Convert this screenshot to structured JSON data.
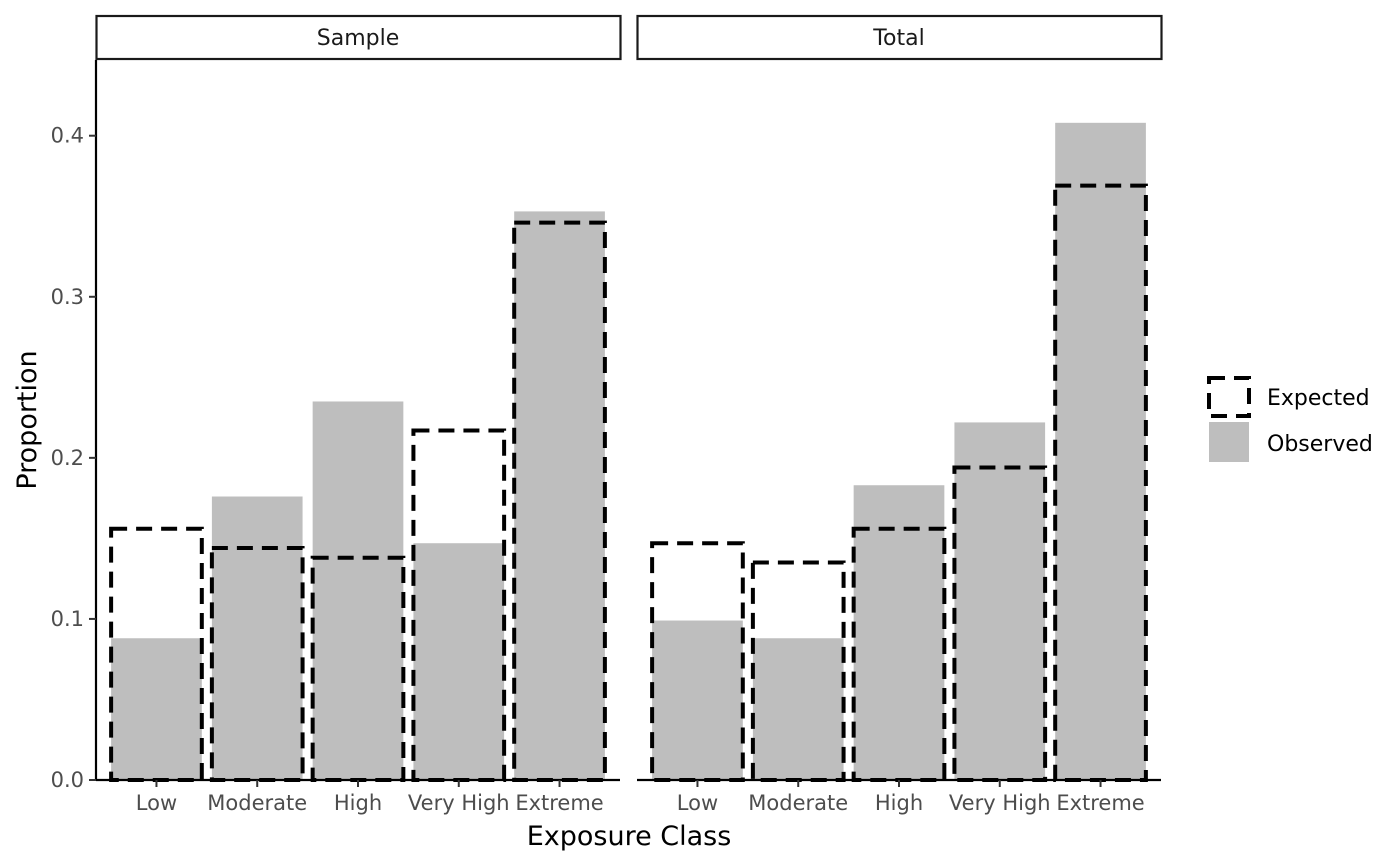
{
  "chart_data": {
    "type": "bar",
    "xlabel": "Exposure Class",
    "ylabel": "Proportion",
    "ylim": [
      0,
      0.447
    ],
    "yticks": [
      "0.0",
      "0.1",
      "0.2",
      "0.3",
      "0.4"
    ],
    "categories": [
      "Low",
      "Moderate",
      "High",
      "Very High",
      "Extreme"
    ],
    "legend": {
      "position": "right",
      "entries": [
        {
          "name": "Expected",
          "style": "dashed-outline"
        },
        {
          "name": "Observed",
          "style": "filled"
        }
      ]
    },
    "colors": {
      "observed": "#bebebe",
      "expected": "#000000"
    },
    "panels": [
      {
        "name": "Sample",
        "observed": [
          0.088,
          0.176,
          0.235,
          0.147,
          0.353
        ],
        "expected": [
          0.156,
          0.144,
          0.138,
          0.217,
          0.346
        ]
      },
      {
        "name": "Total",
        "observed": [
          0.099,
          0.088,
          0.183,
          0.222,
          0.408
        ],
        "expected": [
          0.147,
          0.135,
          0.156,
          0.194,
          0.369
        ]
      }
    ]
  }
}
